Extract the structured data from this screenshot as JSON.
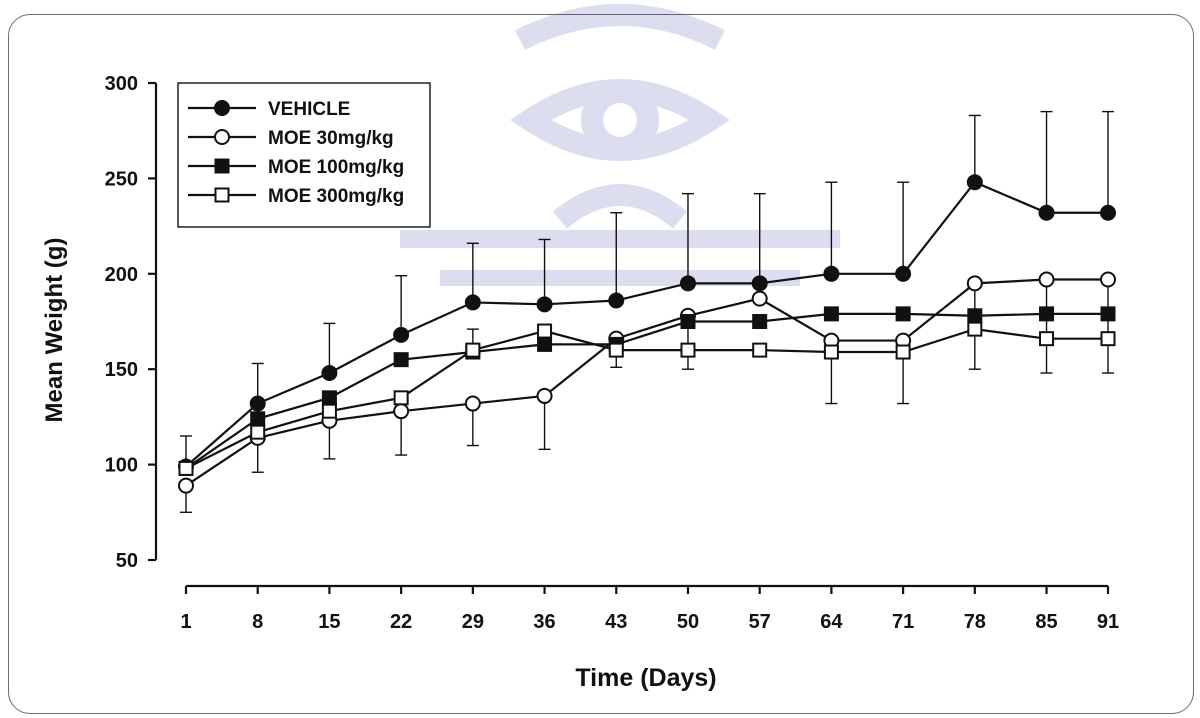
{
  "chart_data": {
    "type": "line",
    "xlabel": "Time (Days)",
    "ylabel": "Mean Weight (g)",
    "x": [
      1,
      8,
      15,
      22,
      29,
      36,
      43,
      50,
      57,
      64,
      71,
      78,
      85,
      91
    ],
    "xticks": [
      "1",
      "8",
      "15",
      "22",
      "29",
      "36",
      "43",
      "50",
      "57",
      "64",
      "71",
      "78",
      "85",
      "91"
    ],
    "yticks": [
      "50",
      "100",
      "150",
      "200",
      "250",
      "300"
    ],
    "ylim": [
      50,
      300
    ],
    "legend_position": "top-left",
    "series": [
      {
        "name": "VEHICLE",
        "marker": "filled-circle",
        "values": [
          99,
          132,
          148,
          168,
          185,
          184,
          186,
          195,
          195,
          200,
          200,
          248,
          232,
          232
        ],
        "error": [
          16,
          21,
          26,
          31,
          31,
          34,
          46,
          47,
          47,
          48,
          48,
          35,
          53,
          53
        ]
      },
      {
        "name": "MOE 30mg/kg",
        "marker": "open-circle",
        "values": [
          89,
          114,
          123,
          128,
          132,
          136,
          166,
          178,
          187,
          165,
          165,
          195,
          197,
          197
        ],
        "error": [
          14,
          18,
          20,
          23,
          22,
          28,
          15,
          28,
          0,
          33,
          33,
          45,
          49,
          49
        ]
      },
      {
        "name": "MOE 100mg/kg",
        "marker": "filled-square",
        "values": [
          98,
          124,
          135,
          155,
          159,
          163,
          163,
          175,
          175,
          179,
          179,
          178,
          179,
          179
        ],
        "error": [
          0,
          0,
          0,
          0,
          0,
          0,
          0,
          0,
          0,
          0,
          0,
          0,
          0,
          0
        ]
      },
      {
        "name": "MOE 300mg/kg",
        "marker": "open-square",
        "values": [
          98,
          117,
          128,
          135,
          160,
          170,
          160,
          160,
          160,
          159,
          159,
          171,
          166,
          166
        ],
        "error": [
          0,
          0,
          0,
          0,
          11,
          0,
          0,
          0,
          0,
          0,
          0,
          0,
          0,
          0
        ]
      }
    ]
  }
}
